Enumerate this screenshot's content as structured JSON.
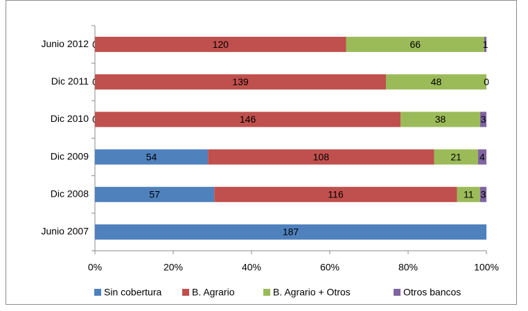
{
  "chart_data": {
    "type": "bar",
    "orientation": "horizontal",
    "stacking": "percent",
    "categories": [
      "Junio 2012",
      "Dic 2011",
      "Dic 2010",
      "Dic 2009",
      "Dic 2008",
      "Junio 2007"
    ],
    "series": [
      {
        "name": "Sin cobertura",
        "color": "#4f81bd",
        "values": [
          0,
          0,
          0,
          54,
          57,
          187
        ]
      },
      {
        "name": "B. Agrario",
        "color": "#c0504d",
        "values": [
          120,
          139,
          146,
          108,
          116,
          null
        ]
      },
      {
        "name": "B. Agrario + Otros",
        "color": "#9bbb59",
        "values": [
          66,
          48,
          38,
          21,
          11,
          null
        ]
      },
      {
        "name": "Otros bancos",
        "color": "#8064a2",
        "values": [
          1,
          0,
          3,
          4,
          3,
          null
        ]
      }
    ],
    "xlim": [
      0,
      100
    ],
    "xticks": [
      {
        "value": 0,
        "label": "0%"
      },
      {
        "value": 20,
        "label": "20%"
      },
      {
        "value": 40,
        "label": "40%"
      },
      {
        "value": 60,
        "label": "60%"
      },
      {
        "value": 80,
        "label": "80%"
      },
      {
        "value": 100,
        "label": "100%"
      }
    ],
    "grid": false,
    "legend": "bottom"
  }
}
